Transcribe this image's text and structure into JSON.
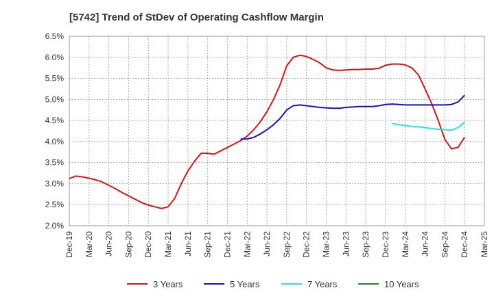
{
  "chart_data": {
    "type": "line",
    "title": "[5742]  Trend of StDev of Operating Cashflow Margin",
    "xlabel": "",
    "ylabel": "",
    "x_tick_labels": [
      "Dec-19",
      "Mar-20",
      "Jun-20",
      "Sep-20",
      "Dec-20",
      "Mar-21",
      "Jun-21",
      "Sep-21",
      "Dec-21",
      "Mar-22",
      "Jun-22",
      "Sep-22",
      "Dec-22",
      "Mar-23",
      "Jun-23",
      "Sep-23",
      "Dec-23",
      "Mar-24",
      "Jun-24",
      "Sep-24",
      "Dec-24",
      "Mar-25"
    ],
    "y_tick_labels": [
      "6.5%",
      "6.0%",
      "5.5%",
      "5.0%",
      "4.5%",
      "4.0%",
      "3.5%",
      "3.0%",
      "2.5%",
      "2.0%"
    ],
    "ylim": [
      2.0,
      6.5
    ],
    "grid": true,
    "legend_position": "bottom",
    "series": [
      {
        "name": "3 Years",
        "color": "#dd1111",
        "values": [
          3.12,
          3.18,
          3.16,
          3.13,
          3.09,
          3.04,
          2.96,
          2.88,
          2.79,
          2.71,
          2.63,
          2.55,
          2.49,
          2.45,
          2.41,
          2.45,
          2.65,
          3.0,
          3.3,
          3.53,
          3.72,
          3.72,
          3.7,
          3.78,
          3.86,
          3.94,
          4.02,
          4.13,
          4.28,
          4.47,
          4.71,
          5.0,
          5.35,
          5.8,
          6.0,
          6.05,
          6.02,
          5.95,
          5.87,
          5.75,
          5.7,
          5.69,
          5.7,
          5.71,
          5.71,
          5.72,
          5.72,
          5.74,
          5.81,
          5.84,
          5.84,
          5.82,
          5.75,
          5.58,
          5.25,
          4.9,
          4.5,
          4.05,
          3.83,
          3.86,
          4.1
        ]
      },
      {
        "name": "5 Years",
        "color": "#1111cc",
        "values": [
          null,
          null,
          null,
          null,
          null,
          null,
          null,
          null,
          null,
          null,
          null,
          null,
          null,
          null,
          null,
          null,
          null,
          null,
          null,
          null,
          null,
          null,
          null,
          null,
          null,
          null,
          4.06,
          4.06,
          4.1,
          4.18,
          4.28,
          4.4,
          4.55,
          4.75,
          4.85,
          4.87,
          4.85,
          4.83,
          4.81,
          4.8,
          4.79,
          4.79,
          4.81,
          4.82,
          4.83,
          4.83,
          4.83,
          4.85,
          4.88,
          4.89,
          4.88,
          4.87,
          4.87,
          4.87,
          4.87,
          4.87,
          4.87,
          4.87,
          4.88,
          4.94,
          5.1
        ]
      },
      {
        "name": "7 Years",
        "color": "#22e5e5",
        "values": [
          null,
          null,
          null,
          null,
          null,
          null,
          null,
          null,
          null,
          null,
          null,
          null,
          null,
          null,
          null,
          null,
          null,
          null,
          null,
          null,
          null,
          null,
          null,
          null,
          null,
          null,
          null,
          null,
          null,
          null,
          null,
          null,
          null,
          null,
          null,
          null,
          null,
          null,
          null,
          null,
          null,
          null,
          null,
          null,
          null,
          null,
          null,
          null,
          null,
          4.43,
          4.4,
          4.38,
          4.36,
          4.35,
          4.33,
          4.31,
          4.29,
          4.28,
          4.27,
          4.33,
          4.46
        ]
      },
      {
        "name": "10 Years",
        "color": "#228822",
        "values": []
      }
    ]
  }
}
